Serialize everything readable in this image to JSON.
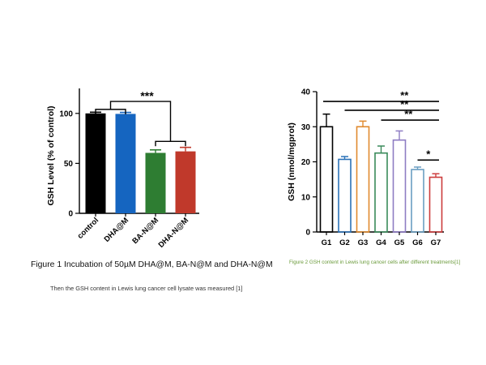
{
  "chart_data": [
    {
      "type": "bar",
      "ylabel": "GSH Level (% of control)",
      "categories": [
        "control",
        "DHA@M",
        "BA-N@M",
        "DHA-N@M"
      ],
      "values": [
        100,
        99.5,
        60.5,
        62
      ],
      "errors": [
        1.2,
        1.5,
        3,
        4
      ],
      "colors": [
        "#000000",
        "#1565c0",
        "#2e7d32",
        "#c0392b"
      ],
      "ylim": [
        0,
        125
      ],
      "yticks": [
        0,
        50,
        100
      ],
      "bar_style": "filled",
      "significance": [
        {
          "label": "***",
          "from": [
            0,
            1
          ],
          "to": [
            2,
            3
          ]
        }
      ]
    },
    {
      "type": "bar",
      "ylabel": "GSH (nmol/mgprot)",
      "categories": [
        "G1",
        "G2",
        "G3",
        "G4",
        "G5",
        "G6",
        "G7"
      ],
      "values": [
        30,
        20.7,
        30,
        22.5,
        26.2,
        17.8,
        15.6
      ],
      "errors": [
        3.6,
        0.8,
        1.6,
        2,
        2.6,
        0.7,
        1
      ],
      "colors": [
        "#000000",
        "#2b72b8",
        "#e08a2e",
        "#3a8a5a",
        "#8e7cc3",
        "#6a9ec2",
        "#cc3d3d"
      ],
      "ylim": [
        0,
        40
      ],
      "yticks": [
        0,
        10,
        20,
        30,
        40
      ],
      "bar_style": "outline",
      "significance": [
        {
          "label": "**",
          "from": 0,
          "to": 6
        },
        {
          "label": "**",
          "from": 1,
          "to": 6
        },
        {
          "label": "**",
          "from": 3,
          "to": 6
        },
        {
          "label": "*",
          "from": 5,
          "to": 6
        }
      ]
    }
  ],
  "captions": {
    "figure1": "Figure 1 Incubation of 50µM DHA@M, BA-N@M and DHA-N@M",
    "figure1_note": "Then the GSH content in Lewis lung cancer cell lysate was measured [1]",
    "figure2": "Figure 2 GSH content in Lewis lung cancer cells after different treatments[1]"
  }
}
